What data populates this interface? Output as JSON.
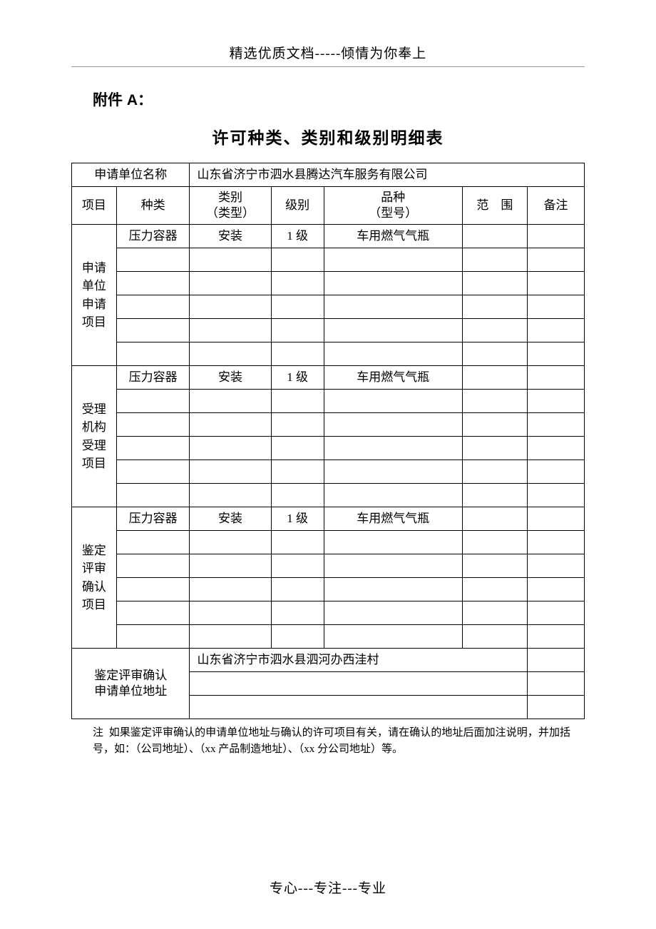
{
  "header": "精选优质文档-----倾情为你奉上",
  "attachment_label": "附件 A：",
  "title": "许可种类、类别和级别明细表",
  "table": {
    "applicant_label": "申请单位名称",
    "applicant_name": "山东省济宁市泗水县腾达汽车服务有限公司",
    "col_project": "项目",
    "col_type": "种类",
    "col_category_l1": "类别",
    "col_category_l2": "（类型）",
    "col_level": "级别",
    "col_variety_l1": "品种",
    "col_variety_l2": "（型号）",
    "col_scope": "范　围",
    "col_note": "备注",
    "section1_label_l1": "申请",
    "section1_label_l2": "单位",
    "section1_label_l3": "申请",
    "section1_label_l4": "项目",
    "section2_label_l1": "受理",
    "section2_label_l2": "机构",
    "section2_label_l3": "受理",
    "section2_label_l4": "项目",
    "section3_label_l1": "鉴定",
    "section3_label_l2": "评审",
    "section3_label_l3": "确认",
    "section3_label_l4": "项目",
    "row_type": "压力容器",
    "row_category": "安装",
    "row_level": "1 级",
    "row_variety": "车用燃气气瓶",
    "address_label_l1": "鉴定评审确认",
    "address_label_l2": "申请单位地址",
    "address_value": "山东省济宁市泗水县泗河办西洼村"
  },
  "note_prefix": "注",
  "note_body": "如果鉴定评审确认的申请单位地址与确认的许可项目有关，请在确认的地址后面加注说明，并加括号，如：（公司地址）、（xx 产品制造地址）、（xx 分公司地址）等。",
  "footer": "专心---专注---专业"
}
